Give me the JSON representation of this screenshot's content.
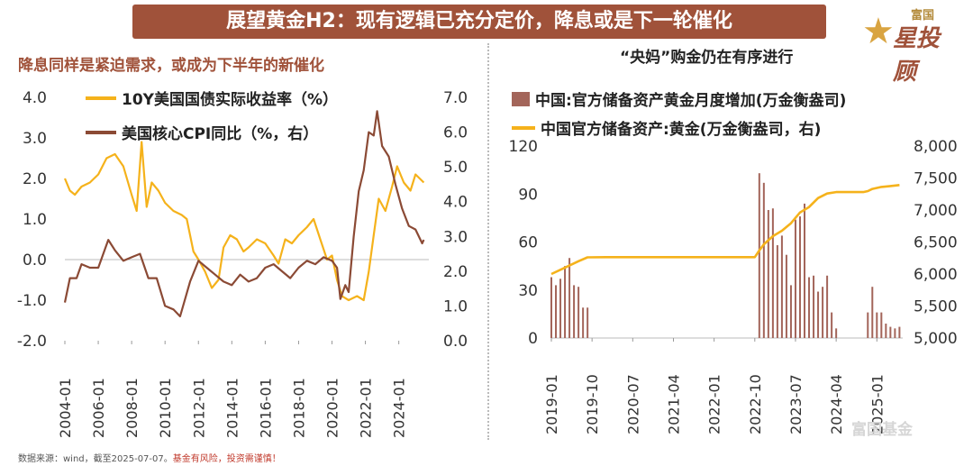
{
  "banner": "展望黄金H2：现有逻辑已充分定价，降息或是下一轮催化",
  "logo": {
    "top": "富国",
    "main": "星投顾"
  },
  "watermark": "富国基金",
  "footnote": {
    "source": "数据来源：wind，截至2025-07-07。",
    "warning": "基金有风险，投资需谨慎！"
  },
  "colors": {
    "gold": "#f5b21b",
    "brown": "#8b4a35",
    "bar": "#a3655a",
    "banner": "#a0523a"
  },
  "chart_data": [
    {
      "type": "line",
      "title": "降息同样是紧迫需求，或成为下半年的新催化",
      "x_ticks": [
        "2004-01",
        "2006-01",
        "2008-01",
        "2010-01",
        "2012-01",
        "2014-01",
        "2016-01",
        "2018-01",
        "2020-01",
        "2022-01",
        "2024-01"
      ],
      "y_left_ticks": [
        "4.0",
        "3.0",
        "2.0",
        "1.0",
        "0.0",
        "-1.0",
        "-2.0"
      ],
      "y_left_lim": [
        -2.0,
        4.0
      ],
      "y_right_ticks": [
        "7.0",
        "6.0",
        "5.0",
        "4.0",
        "3.0",
        "2.0",
        "1.0",
        "0.0"
      ],
      "y_right_lim": [
        0.0,
        7.0
      ],
      "series": [
        {
          "name": "10Y美国国债实际收益率（%）",
          "axis": "left",
          "color": "#f5b21b",
          "x": [
            2004.0,
            2004.3,
            2004.6,
            2005.0,
            2005.5,
            2006.0,
            2006.5,
            2007.0,
            2007.5,
            2008.0,
            2008.3,
            2008.6,
            2008.9,
            2009.2,
            2009.6,
            2010.0,
            2010.5,
            2011.0,
            2011.3,
            2011.7,
            2012.0,
            2012.4,
            2012.8,
            2013.2,
            2013.5,
            2013.9,
            2014.3,
            2014.7,
            2015.0,
            2015.5,
            2016.0,
            2016.5,
            2016.8,
            2017.2,
            2017.6,
            2018.0,
            2018.5,
            2018.9,
            2019.3,
            2019.7,
            2020.0,
            2020.3,
            2020.6,
            2021.0,
            2021.5,
            2021.9,
            2022.2,
            2022.5,
            2022.8,
            2023.2,
            2023.6,
            2023.9,
            2024.3,
            2024.7,
            2025.0,
            2025.5
          ],
          "y": [
            2.0,
            1.7,
            1.6,
            1.8,
            1.9,
            2.1,
            2.5,
            2.6,
            2.3,
            1.6,
            1.2,
            2.9,
            1.3,
            1.9,
            1.7,
            1.4,
            1.2,
            1.1,
            1.0,
            0.2,
            0.0,
            -0.3,
            -0.7,
            -0.5,
            0.3,
            0.6,
            0.5,
            0.2,
            0.3,
            0.5,
            0.4,
            0.1,
            -0.1,
            0.5,
            0.4,
            0.6,
            0.8,
            1.0,
            0.5,
            0.0,
            0.1,
            -0.5,
            -0.9,
            -1.0,
            -0.9,
            -1.0,
            -0.3,
            0.6,
            1.5,
            1.2,
            1.8,
            2.3,
            1.9,
            1.7,
            2.1,
            1.9
          ]
        },
        {
          "name": "美国核心CPI同比（%，右）",
          "axis": "right",
          "color": "#8b4a35",
          "x": [
            2004.0,
            2004.3,
            2004.7,
            2005.0,
            2005.5,
            2006.0,
            2006.6,
            2007.0,
            2007.5,
            2008.0,
            2008.5,
            2009.0,
            2009.5,
            2010.0,
            2010.5,
            2010.9,
            2011.5,
            2012.0,
            2012.5,
            2013.0,
            2013.5,
            2014.0,
            2014.5,
            2015.0,
            2015.5,
            2016.0,
            2016.5,
            2017.0,
            2017.5,
            2018.0,
            2018.5,
            2019.0,
            2019.5,
            2020.0,
            2020.3,
            2020.5,
            2020.8,
            2021.0,
            2021.3,
            2021.6,
            2021.9,
            2022.2,
            2022.5,
            2022.7,
            2023.0,
            2023.4,
            2023.8,
            2024.2,
            2024.6,
            2025.0,
            2025.4,
            2025.5
          ],
          "y": [
            1.1,
            1.8,
            1.8,
            2.2,
            2.1,
            2.1,
            2.9,
            2.6,
            2.3,
            2.4,
            2.5,
            1.8,
            1.8,
            1.0,
            0.9,
            0.7,
            1.7,
            2.3,
            2.1,
            1.9,
            1.7,
            1.6,
            1.9,
            1.7,
            1.8,
            2.1,
            2.2,
            2.0,
            1.8,
            2.1,
            2.3,
            2.2,
            2.4,
            2.3,
            2.1,
            1.2,
            1.6,
            1.4,
            3.0,
            4.3,
            4.9,
            6.0,
            5.9,
            6.6,
            5.6,
            5.3,
            4.5,
            3.8,
            3.3,
            3.2,
            2.8,
            2.9
          ]
        }
      ]
    },
    {
      "type": "bar",
      "title": "“央妈”购金仍在有序进行",
      "x_ticks": [
        "2019-01",
        "2019-10",
        "2020-07",
        "2021-04",
        "2022-01",
        "2022-10",
        "2023-07",
        "2024-04",
        "2025-01"
      ],
      "y_left_ticks": [
        "120",
        "90",
        "60",
        "30",
        "0"
      ],
      "y_left_lim": [
        0,
        120
      ],
      "y_right_ticks": [
        "8,000",
        "7,500",
        "7,000",
        "6,500",
        "6,000",
        "5,500",
        "5,000"
      ],
      "y_right_lim": [
        5000,
        8000
      ],
      "series": [
        {
          "name": "中国:官方储备资产黄金月度增加(万金衡盎司)",
          "axis": "left",
          "kind": "bar",
          "color": "#a3655a",
          "x": [
            "2019-01",
            "2019-02",
            "2019-03",
            "2019-04",
            "2019-05",
            "2019-06",
            "2019-07",
            "2019-08",
            "2019-09",
            "2022-11",
            "2022-12",
            "2023-01",
            "2023-02",
            "2023-03",
            "2023-04",
            "2023-05",
            "2023-06",
            "2023-07",
            "2023-08",
            "2023-09",
            "2023-10",
            "2023-11",
            "2023-12",
            "2024-01",
            "2024-02",
            "2024-03",
            "2024-04",
            "2024-11",
            "2024-12",
            "2025-01",
            "2025-02",
            "2025-03",
            "2025-04",
            "2025-05",
            "2025-06"
          ],
          "y": [
            38,
            33,
            37,
            45,
            50,
            33,
            32,
            19,
            19,
            103,
            97,
            80,
            81,
            58,
            64,
            52,
            33,
            74,
            76,
            84,
            38,
            39,
            29,
            32,
            39,
            16,
            6,
            16,
            32,
            16,
            16,
            9,
            7,
            6,
            7
          ]
        },
        {
          "name": "中国官方储备资产:黄金(万金衡盎司，右)",
          "axis": "right",
          "kind": "line",
          "color": "#f5b21b",
          "x": [
            "2019-01",
            "2019-04",
            "2019-07",
            "2019-09",
            "2020-01",
            "2021-01",
            "2022-01",
            "2022-10",
            "2022-11",
            "2022-12",
            "2023-02",
            "2023-04",
            "2023-06",
            "2023-08",
            "2023-10",
            "2023-12",
            "2024-02",
            "2024-04",
            "2024-10",
            "2024-11",
            "2024-12",
            "2025-02",
            "2025-04",
            "2025-06"
          ],
          "y": [
            6000,
            6100,
            6200,
            6260,
            6264,
            6264,
            6264,
            6264,
            6367,
            6464,
            6592,
            6676,
            6795,
            6962,
            7046,
            7187,
            7258,
            7280,
            7280,
            7296,
            7329,
            7361,
            7374,
            7390
          ]
        }
      ]
    }
  ]
}
